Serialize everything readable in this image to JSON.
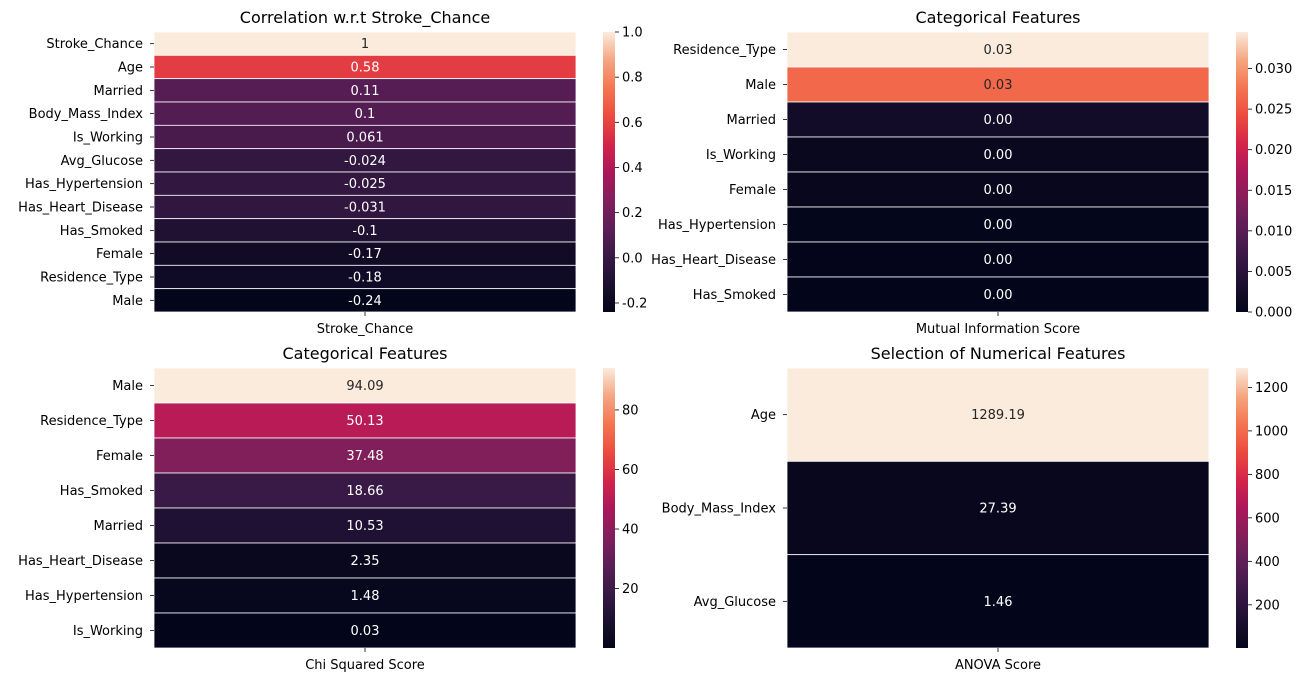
{
  "chart_data": [
    {
      "type": "heatmap",
      "title": "Correlation w.r.t Stroke_Chance",
      "xlabel": "Stroke_Chance",
      "rows": [
        "Stroke_Chance",
        "Age",
        "Married",
        "Body_Mass_Index",
        "Is_Working",
        "Avg_Glucose",
        "Has_Hypertension",
        "Has_Heart_Disease",
        "Has_Smoked",
        "Female",
        "Residence_Type",
        "Male"
      ],
      "values": [
        1,
        0.58,
        0.11,
        0.1,
        0.061,
        -0.024,
        -0.025,
        -0.031,
        -0.1,
        -0.17,
        -0.18,
        -0.24
      ],
      "annotations": [
        "1",
        "0.58",
        "0.11",
        "0.1",
        "0.061",
        "-0.024",
        "-0.025",
        "-0.031",
        "-0.1",
        "-0.17",
        "-0.18",
        "-0.24"
      ],
      "vmin": -0.24,
      "vmax": 1,
      "colorbar_ticks": [
        -0.2,
        0.0,
        0.2,
        0.4,
        0.6,
        0.8,
        1.0
      ],
      "colorbar_tick_labels": [
        "-0.2",
        "0.0",
        "0.2",
        "0.4",
        "0.6",
        "0.8",
        "1.0"
      ],
      "colormap": "rocket"
    },
    {
      "type": "heatmap",
      "title": "Categorical Features",
      "xlabel": "Mutual Information Score",
      "rows": [
        "Residence_Type",
        "Male",
        "Married",
        "Is_Working",
        "Female",
        "Has_Hypertension",
        "Has_Heart_Disease",
        "Has_Smoked"
      ],
      "values": [
        0.0345,
        0.0265,
        0.0022,
        0.0008,
        0.0007,
        0.0002,
        0.0001,
        0.0
      ],
      "annotations": [
        "0.03",
        "0.03",
        "0.00",
        "0.00",
        "0.00",
        "0.00",
        "0.00",
        "0.00"
      ],
      "vmin": 0,
      "vmax": 0.0345,
      "colorbar_ticks": [
        0.0,
        0.005,
        0.01,
        0.015,
        0.02,
        0.025,
        0.03
      ],
      "colorbar_tick_labels": [
        "0.000",
        "0.005",
        "0.010",
        "0.015",
        "0.020",
        "0.025",
        "0.030"
      ],
      "colormap": "rocket"
    },
    {
      "type": "heatmap",
      "title": "Categorical Features",
      "xlabel": "Chi Squared Score",
      "rows": [
        "Male",
        "Residence_Type",
        "Female",
        "Has_Smoked",
        "Married",
        "Has_Heart_Disease",
        "Has_Hypertension",
        "Is_Working"
      ],
      "values": [
        94.09,
        50.13,
        37.48,
        18.66,
        10.53,
        2.35,
        1.48,
        0.03
      ],
      "annotations": [
        "94.09",
        "50.13",
        "37.48",
        "18.66",
        "10.53",
        "2.35",
        "1.48",
        "0.03"
      ],
      "vmin": 0.03,
      "vmax": 94.09,
      "colorbar_ticks": [
        20,
        40,
        60,
        80
      ],
      "colorbar_tick_labels": [
        "20",
        "40",
        "60",
        "80"
      ],
      "colormap": "rocket"
    },
    {
      "type": "heatmap",
      "title": "Selection of Numerical Features",
      "xlabel": "ANOVA Score",
      "rows": [
        "Age",
        "Body_Mass_Index",
        "Avg_Glucose"
      ],
      "values": [
        1289.19,
        27.39,
        1.46
      ],
      "annotations": [
        "1289.19",
        "27.39",
        "1.46"
      ],
      "vmin": 1.46,
      "vmax": 1289.19,
      "colorbar_ticks": [
        200,
        400,
        600,
        800,
        1000,
        1200
      ],
      "colorbar_tick_labels": [
        "200",
        "400",
        "600",
        "800",
        "1000",
        "1200"
      ],
      "colormap": "rocket"
    }
  ]
}
